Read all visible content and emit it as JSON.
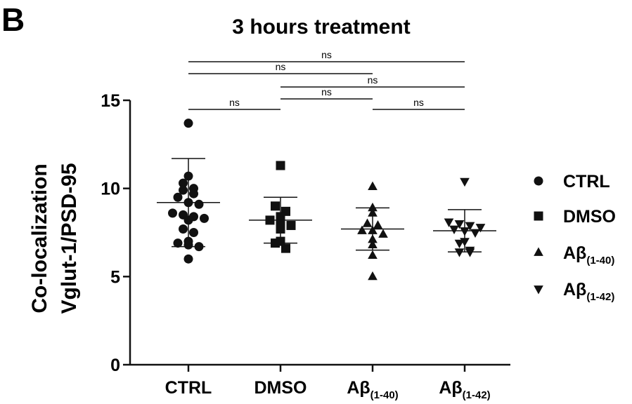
{
  "panel_label": "B",
  "chart_data": {
    "type": "scatter",
    "title": "3 hours treatment",
    "ylabel_lines": [
      "Co-localization",
      "Vglut-1/PSD-95"
    ],
    "ylim": [
      0,
      15
    ],
    "yticks": [
      0,
      5,
      10,
      15
    ],
    "categories": [
      {
        "main": "CTRL",
        "sub": ""
      },
      {
        "main": "DMSO",
        "sub": ""
      },
      {
        "main": "Aβ",
        "sub": "(1-40)"
      },
      {
        "main": "Aβ",
        "sub": "(1-42)"
      }
    ],
    "series": [
      {
        "marker": "circle",
        "mean": 9.2,
        "sd": 2.5,
        "values": [
          13.7,
          10.7,
          10.3,
          10.0,
          9.9,
          9.7,
          9.5,
          9.2,
          9.1,
          8.6,
          8.5,
          8.4,
          8.3,
          8.2,
          7.7,
          7.5,
          7.0,
          6.9,
          6.8,
          6.7,
          6.0
        ]
      },
      {
        "marker": "square",
        "mean": 8.2,
        "sd": 1.3,
        "values": [
          11.3,
          9.0,
          8.7,
          8.4,
          8.2,
          8.0,
          7.9,
          7.7,
          7.0,
          6.9,
          6.6
        ]
      },
      {
        "marker": "triangle-up",
        "mean": 7.7,
        "sd": 1.2,
        "values": [
          10.1,
          8.9,
          8.6,
          8.0,
          7.9,
          7.6,
          7.6,
          7.4,
          7.1,
          6.8,
          6.2,
          5.0
        ]
      },
      {
        "marker": "triangle-down",
        "mean": 7.6,
        "sd": 1.2,
        "values": [
          10.4,
          8.1,
          8.0,
          7.9,
          7.8,
          7.7,
          7.6,
          7.5,
          7.0,
          6.9,
          6.5,
          6.4,
          6.4
        ]
      }
    ],
    "comparisons": [
      {
        "from": 0,
        "to": 3,
        "label": "ns",
        "level": 5
      },
      {
        "from": 0,
        "to": 2,
        "label": "ns",
        "level": 4
      },
      {
        "from": 1,
        "to": 3,
        "label": "ns",
        "level": 3
      },
      {
        "from": 1,
        "to": 2,
        "label": "ns",
        "level": 2
      },
      {
        "from": 0,
        "to": 1,
        "label": "ns",
        "level": 1
      },
      {
        "from": 2,
        "to": 3,
        "label": "ns",
        "level": 1
      }
    ],
    "legend": {
      "placement": "right",
      "entries": [
        {
          "marker": "circle",
          "main": "CTRL",
          "sub": ""
        },
        {
          "marker": "square",
          "main": "DMSO",
          "sub": ""
        },
        {
          "marker": "triangle-up",
          "main": "Aβ",
          "sub": "(1-40)"
        },
        {
          "marker": "triangle-down",
          "main": "Aβ",
          "sub": "(1-42)"
        }
      ]
    },
    "grid": false
  }
}
